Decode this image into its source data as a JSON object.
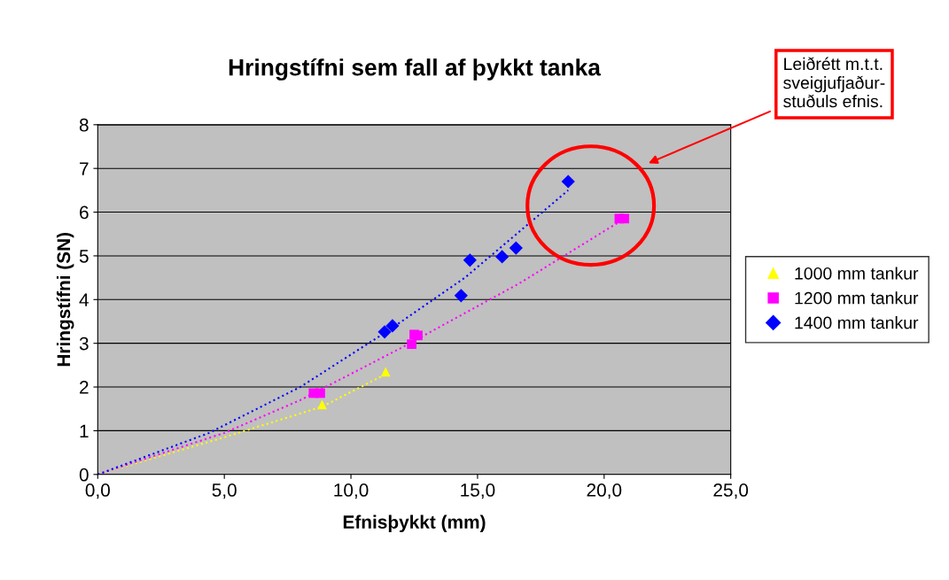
{
  "chart_data": {
    "type": "scatter",
    "title": "Hringstífni sem fall af þykkt tanka",
    "xlabel": "Efnisþykkt (mm)",
    "ylabel": "Hringstífni (SN)",
    "xlim": [
      0,
      25
    ],
    "xticks": [
      {
        "value": 0,
        "label": "0,0"
      },
      {
        "value": 5,
        "label": "5,0"
      },
      {
        "value": 10,
        "label": "10,0"
      },
      {
        "value": 15,
        "label": "15,0"
      },
      {
        "value": 20,
        "label": "20,0"
      },
      {
        "value": 25,
        "label": "25,0"
      }
    ],
    "ylim": [
      0,
      8
    ],
    "yticks": [
      0,
      1,
      2,
      3,
      4,
      5,
      6,
      7,
      8
    ],
    "grid": "y",
    "legend": "right",
    "series": [
      {
        "name": "1000 mm tankur",
        "color": "#ffff00",
        "marker": "triangle",
        "x": [
          8.86,
          11.37
        ],
        "values": [
          1.6,
          2.35
        ]
      },
      {
        "name": "1200 mm tankur",
        "color": "#ff00ff",
        "marker": "square",
        "x": [
          8.52,
          8.79,
          12.4,
          12.5,
          12.64,
          20.6,
          20.8
        ],
        "values": [
          1.86,
          1.86,
          2.98,
          3.2,
          3.18,
          5.85,
          5.85
        ]
      },
      {
        "name": "1400 mm tankur",
        "color": "#0000ff",
        "marker": "diamond",
        "x": [
          11.33,
          11.64,
          14.35,
          14.7,
          15.97,
          16.52,
          18.58
        ],
        "values": [
          3.26,
          3.4,
          4.09,
          4.9,
          4.98,
          5.18,
          6.7
        ]
      },
      {
        "type": "line",
        "color": "#ffff00",
        "line_style": "dotted",
        "x": [
          0,
          5,
          8.86,
          11.4
        ],
        "values": [
          0,
          0.85,
          1.55,
          2.3
        ]
      },
      {
        "type": "line",
        "color": "#ff00ff",
        "line_style": "dotted",
        "x": [
          0,
          5,
          8,
          12,
          16.65,
          20.8
        ],
        "values": [
          0,
          0.95,
          1.7,
          2.9,
          4.37,
          5.85
        ]
      },
      {
        "type": "line",
        "color": "#0000ff",
        "line_style": "dotted",
        "x": [
          0,
          4.4,
          8,
          11.5,
          14.5,
          18.58
        ],
        "values": [
          0,
          0.95,
          2.0,
          3.3,
          4.5,
          6.5
        ]
      }
    ],
    "annotations": [
      "Leiðrétt m.t.t.\nsveigjufjaður-\nstuðuls efnis."
    ]
  }
}
